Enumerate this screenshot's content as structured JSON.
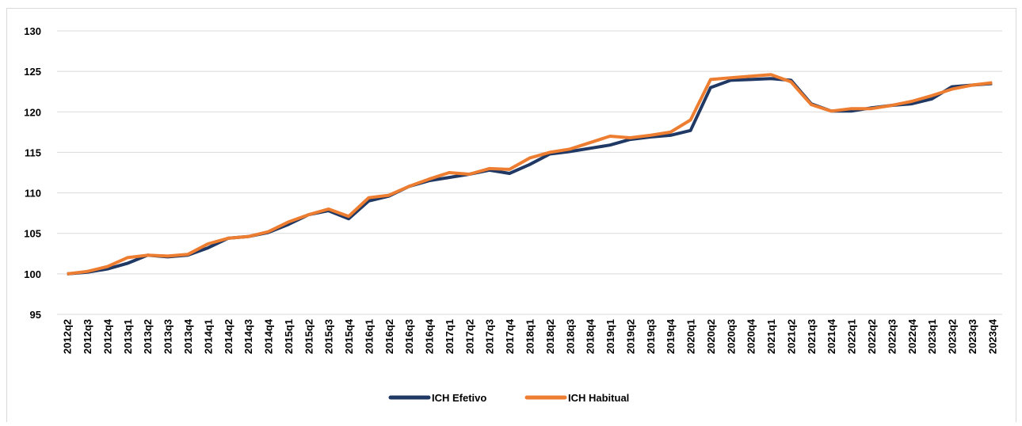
{
  "chart_data": {
    "type": "line",
    "categories": [
      "2012q2",
      "2012q3",
      "2012q4",
      "2013q1",
      "2013q2",
      "2013q3",
      "2013q4",
      "2014q1",
      "2014q2",
      "2014q3",
      "2014q4",
      "2015q1",
      "2015q2",
      "2015q3",
      "2015q4",
      "2016q1",
      "2016q2",
      "2016q3",
      "2016q4",
      "2017q1",
      "2017q2",
      "2017q3",
      "2017q4",
      "2018q1",
      "2018q2",
      "2018q3",
      "2018q4",
      "2019q1",
      "2019q2",
      "2019q3",
      "2019q4",
      "2020q1",
      "2020q2",
      "2020q3",
      "2020q4",
      "2021q1",
      "2021q2",
      "2021q3",
      "2021q4",
      "2022q1",
      "2022q2",
      "2022q3",
      "2022q4",
      "2023q1",
      "2023q2",
      "2023q3",
      "2023q4"
    ],
    "series": [
      {
        "name": "ICH Efetivo",
        "color": "#1f3864",
        "values": [
          100.0,
          100.2,
          100.6,
          101.3,
          102.3,
          102.1,
          102.3,
          103.2,
          104.4,
          104.6,
          105.1,
          106.1,
          107.3,
          107.8,
          106.8,
          109.0,
          109.6,
          110.8,
          111.5,
          111.9,
          112.3,
          112.8,
          112.4,
          113.5,
          114.8,
          115.1,
          115.5,
          115.9,
          116.6,
          116.9,
          117.1,
          117.7,
          123.0,
          123.9,
          124.0,
          124.1,
          123.9,
          121.0,
          120.1,
          120.1,
          120.5,
          120.8,
          121.0,
          121.6,
          123.1,
          123.3,
          123.5
        ]
      },
      {
        "name": "ICH Habitual",
        "color": "#ed7d31",
        "values": [
          100.0,
          100.3,
          100.9,
          102.0,
          102.3,
          102.2,
          102.4,
          103.7,
          104.4,
          104.6,
          105.2,
          106.4,
          107.3,
          108.0,
          107.1,
          109.4,
          109.7,
          110.8,
          111.7,
          112.5,
          112.3,
          113.0,
          112.9,
          114.3,
          115.0,
          115.4,
          116.2,
          117.0,
          116.8,
          117.1,
          117.5,
          119.0,
          124.0,
          124.2,
          124.4,
          124.6,
          123.7,
          120.9,
          120.1,
          120.4,
          120.4,
          120.8,
          121.3,
          122.0,
          122.8,
          123.3,
          123.6
        ]
      }
    ],
    "ylim": [
      95,
      130
    ],
    "yticks": [
      95,
      100,
      105,
      110,
      115,
      120,
      125,
      130
    ],
    "grid": true,
    "legend": "bottom"
  }
}
